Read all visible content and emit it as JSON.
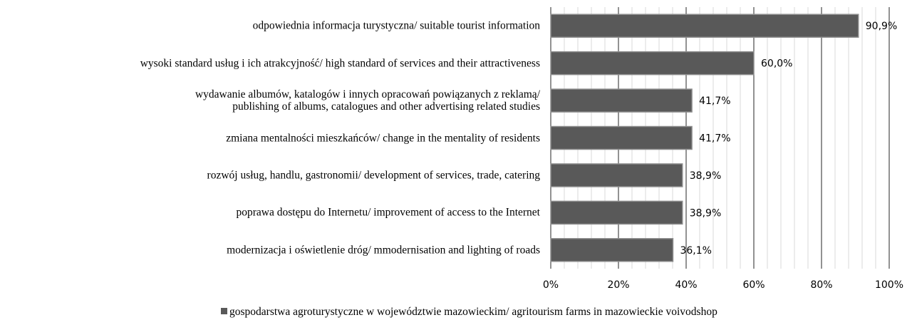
{
  "chart_data": {
    "type": "bar",
    "orientation": "horizontal",
    "categories": [
      "odpowiednia informacja turystyczna/ suitable tourist information",
      "wysoki standard usług i ich atrakcyjność/ high standard of services and their attractiveness",
      "wydawanie albumów, katalogów i innych opracowań powiązanych z reklamą/\npublishing of albums, catalogues and other advertising related studies",
      "zmiana mentalności mieszkańców/ change in the mentality of residents",
      "rozwój usług, handlu, gastronomii/ development of services, trade, catering",
      "poprawa dostępu do Internetu/ improvement of access to the Internet",
      "modernizacja i oświetlenie dróg/ mmodernisation and lighting of roads"
    ],
    "series": [
      {
        "name": "gospodarstwa agroturystyczne w województwie mazowieckim/ agritourism farms in mazowieckie voivodshop",
        "color": "#595959",
        "values": [
          90.9,
          60.0,
          41.7,
          41.7,
          38.9,
          38.9,
          36.1
        ],
        "value_labels": [
          "90,9%",
          "60,0%",
          "41,7%",
          "41,7%",
          "38,9%",
          "38,9%",
          "36,1%"
        ]
      }
    ],
    "xlim": [
      0,
      100
    ],
    "xticks": [
      {
        "value": 0,
        "label": "0%"
      },
      {
        "value": 20,
        "label": "20%"
      },
      {
        "value": 40,
        "label": "40%"
      },
      {
        "value": 60,
        "label": "60%"
      },
      {
        "value": 80,
        "label": "80%"
      },
      {
        "value": 100,
        "label": "100%"
      }
    ],
    "minor_xticks": [
      4,
      8,
      12,
      16,
      24,
      28,
      32,
      36,
      44,
      48,
      52,
      56,
      64,
      68,
      72,
      76,
      84,
      88,
      92,
      96
    ],
    "grid": true,
    "legend": "bottom"
  }
}
